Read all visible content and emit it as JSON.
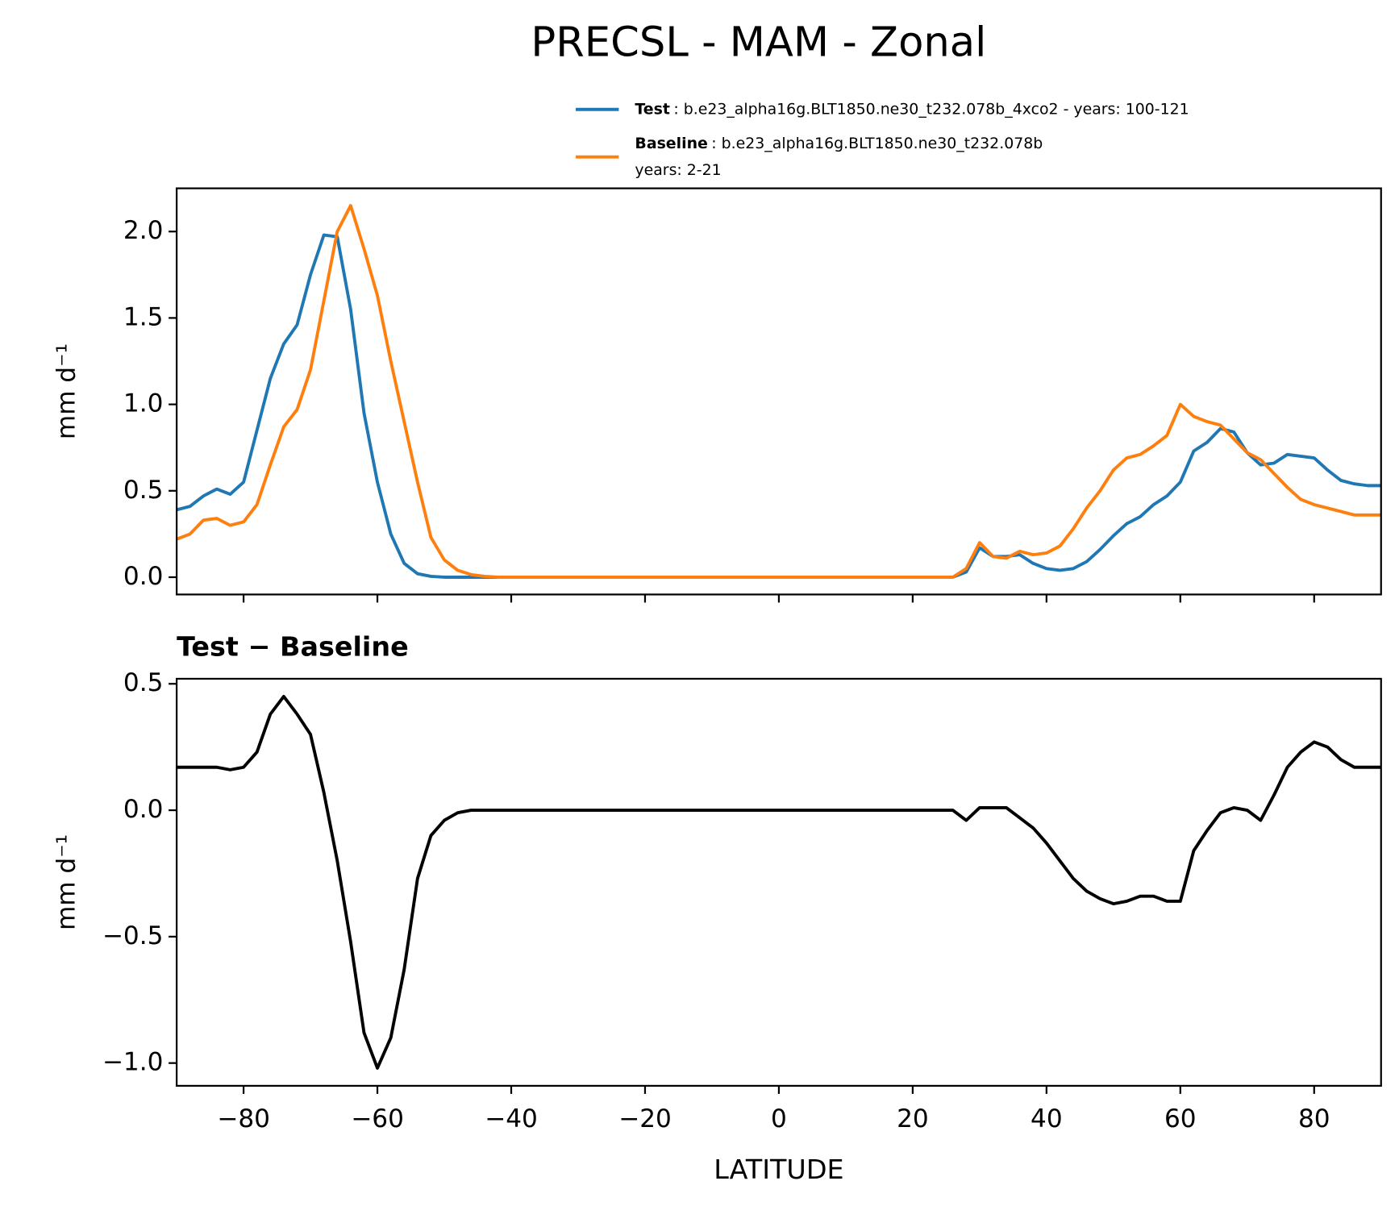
{
  "chart_data": [
    {
      "type": "line",
      "title": "PRECSL - MAM - Zonal",
      "ylabel": "mm d⁻¹",
      "x": [
        -90,
        -88,
        -86,
        -84,
        -82,
        -80,
        -78,
        -76,
        -74,
        -72,
        -70,
        -68,
        -66,
        -64,
        -62,
        -60,
        -58,
        -56,
        -54,
        -52,
        -50,
        -48,
        -46,
        -44,
        -42,
        -40,
        -38,
        -36,
        -34,
        -32,
        -30,
        -28,
        -26,
        -24,
        -22,
        -20,
        -18,
        -16,
        -14,
        -12,
        -10,
        -8,
        -6,
        -4,
        -2,
        0,
        2,
        4,
        6,
        8,
        10,
        12,
        14,
        16,
        18,
        20,
        22,
        24,
        26,
        28,
        30,
        32,
        34,
        36,
        38,
        40,
        42,
        44,
        46,
        48,
        50,
        52,
        54,
        56,
        58,
        60,
        62,
        64,
        66,
        68,
        70,
        72,
        74,
        76,
        78,
        80,
        82,
        84,
        86,
        88,
        90
      ],
      "series": [
        {
          "name": "Test",
          "label": ": b.e23_alpha16g.BLT1850.ne30_t232.078b_4xco2 - years: 100-121",
          "color": "#1f77b4",
          "values": [
            0.39,
            0.41,
            0.47,
            0.51,
            0.48,
            0.55,
            0.85,
            1.15,
            1.35,
            1.46,
            1.75,
            1.98,
            1.97,
            1.55,
            0.95,
            0.55,
            0.25,
            0.08,
            0.02,
            0.005,
            0,
            0,
            0,
            0,
            0,
            0,
            0,
            0,
            0,
            0,
            0,
            0,
            0,
            0,
            0,
            0,
            0,
            0,
            0,
            0,
            0,
            0,
            0,
            0,
            0,
            0,
            0,
            0,
            0,
            0,
            0,
            0,
            0,
            0,
            0,
            0,
            0,
            0,
            0,
            0.03,
            0.17,
            0.12,
            0.12,
            0.13,
            0.08,
            0.05,
            0.04,
            0.05,
            0.09,
            0.16,
            0.24,
            0.31,
            0.35,
            0.42,
            0.47,
            0.55,
            0.73,
            0.78,
            0.86,
            0.84,
            0.72,
            0.65,
            0.66,
            0.71,
            0.7,
            0.69,
            0.62,
            0.56,
            0.54,
            0.53,
            0.53
          ]
        },
        {
          "name": "Baseline",
          "label": ": b.e23_alpha16g.BLT1850.ne30_t232.078b",
          "label2": "years: 2-21",
          "color": "#ff7f0e",
          "values": [
            0.22,
            0.25,
            0.33,
            0.34,
            0.3,
            0.32,
            0.42,
            0.65,
            0.87,
            0.97,
            1.2,
            1.6,
            2.0,
            2.15,
            1.9,
            1.63,
            1.25,
            0.9,
            0.55,
            0.23,
            0.1,
            0.04,
            0.015,
            0.005,
            0,
            0,
            0,
            0,
            0,
            0,
            0,
            0,
            0,
            0,
            0,
            0,
            0,
            0,
            0,
            0,
            0,
            0,
            0,
            0,
            0,
            0,
            0,
            0,
            0,
            0,
            0,
            0,
            0,
            0,
            0,
            0,
            0,
            0,
            0,
            0.05,
            0.2,
            0.12,
            0.11,
            0.15,
            0.13,
            0.14,
            0.18,
            0.28,
            0.4,
            0.5,
            0.62,
            0.69,
            0.71,
            0.76,
            0.82,
            1.0,
            0.93,
            0.9,
            0.88,
            0.8,
            0.72,
            0.68,
            0.6,
            0.52,
            0.45,
            0.42,
            0.4,
            0.38,
            0.36,
            0.36,
            0.36
          ]
        }
      ],
      "xlim": [
        -90,
        90
      ],
      "xticks": [
        {
          "value": -80,
          "label": "−80"
        },
        {
          "value": -60,
          "label": "−60"
        },
        {
          "value": -40,
          "label": "−40"
        },
        {
          "value": -20,
          "label": "−20"
        },
        0,
        20,
        40,
        60,
        80
      ],
      "ylim": [
        -0.1,
        2.25
      ],
      "yticks": [
        {
          "value": 0,
          "label": "0.0"
        },
        0.5,
        {
          "value": 1,
          "label": "1.0"
        },
        1.5,
        {
          "value": 2,
          "label": "2.0"
        }
      ]
    },
    {
      "type": "line",
      "title": "Test − Baseline",
      "ylabel": "mm d⁻¹",
      "xlabel": "LATITUDE",
      "x": [
        -90,
        -88,
        -86,
        -84,
        -82,
        -80,
        -78,
        -76,
        -74,
        -72,
        -70,
        -68,
        -66,
        -64,
        -62,
        -60,
        -58,
        -56,
        -54,
        -52,
        -50,
        -48,
        -46,
        -44,
        -42,
        -40,
        -38,
        -36,
        -34,
        -32,
        -30,
        -28,
        -26,
        -24,
        -22,
        -20,
        -18,
        -16,
        -14,
        -12,
        -10,
        -8,
        -6,
        -4,
        -2,
        0,
        2,
        4,
        6,
        8,
        10,
        12,
        14,
        16,
        18,
        20,
        22,
        24,
        26,
        28,
        30,
        32,
        34,
        36,
        38,
        40,
        42,
        44,
        46,
        48,
        50,
        52,
        54,
        56,
        58,
        60,
        62,
        64,
        66,
        68,
        70,
        72,
        74,
        76,
        78,
        80,
        82,
        84,
        86,
        88,
        90
      ],
      "series": [
        {
          "color": "#000000",
          "values": [
            0.17,
            0.17,
            0.17,
            0.17,
            0.16,
            0.17,
            0.23,
            0.38,
            0.45,
            0.38,
            0.3,
            0.07,
            -0.2,
            -0.52,
            -0.88,
            -1.02,
            -0.9,
            -0.63,
            -0.27,
            -0.1,
            -0.04,
            -0.01,
            0,
            0,
            0,
            0,
            0,
            0,
            0,
            0,
            0,
            0,
            0,
            0,
            0,
            0,
            0,
            0,
            0,
            0,
            0,
            0,
            0,
            0,
            0,
            0,
            0,
            0,
            0,
            0,
            0,
            0,
            0,
            0,
            0,
            0,
            0,
            0,
            0,
            -0.04,
            0.01,
            0.01,
            0.01,
            -0.03,
            -0.07,
            -0.13,
            -0.2,
            -0.27,
            -0.32,
            -0.35,
            -0.37,
            -0.36,
            -0.34,
            -0.34,
            -0.36,
            -0.36,
            -0.16,
            -0.08,
            -0.01,
            0.01,
            0,
            -0.04,
            0.06,
            0.17,
            0.23,
            0.27,
            0.25,
            0.2,
            0.17,
            0.17,
            0.17
          ]
        }
      ],
      "xlim": [
        -90,
        90
      ],
      "xticks": [
        {
          "value": -80,
          "label": "−80"
        },
        {
          "value": -60,
          "label": "−60"
        },
        {
          "value": -40,
          "label": "−40"
        },
        {
          "value": -20,
          "label": "−20"
        },
        0,
        20,
        40,
        60,
        80
      ],
      "ylim": [
        -1.09,
        0.52
      ],
      "yticks": [
        {
          "value": -1,
          "label": "−1.0"
        },
        {
          "value": -0.5,
          "label": "−0.5"
        },
        {
          "value": 0,
          "label": "0.0"
        },
        0.5
      ]
    }
  ]
}
